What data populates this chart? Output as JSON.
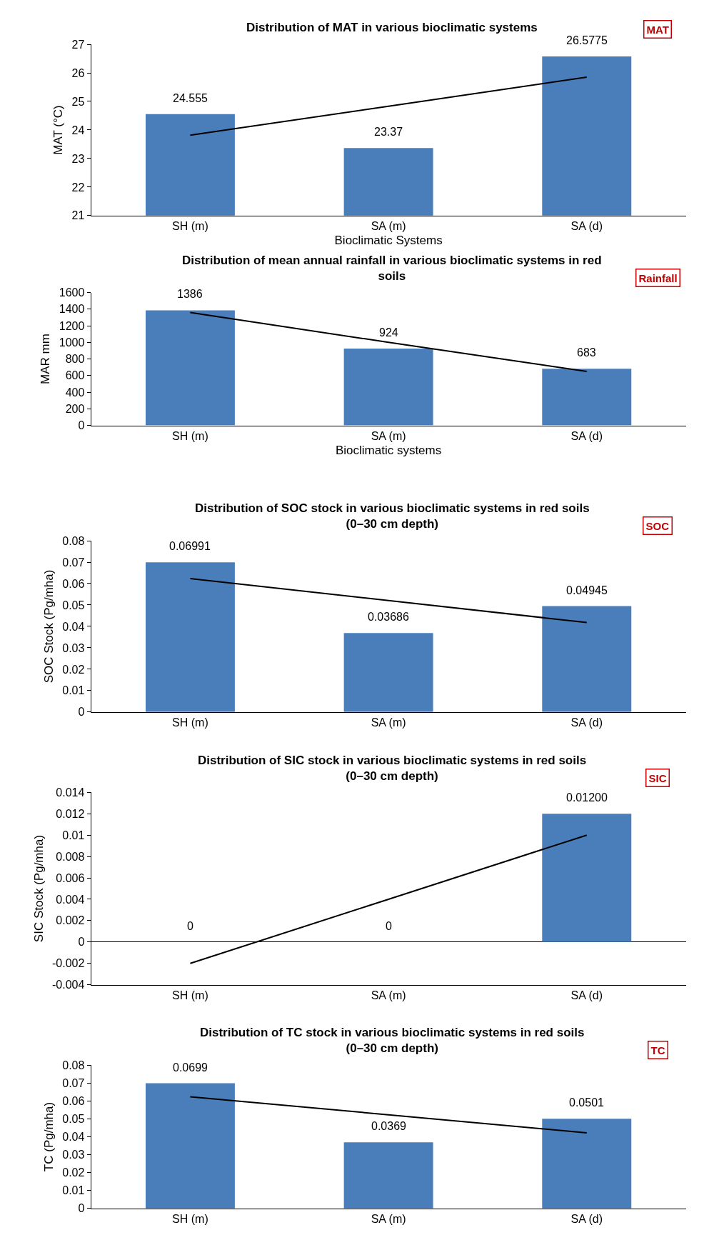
{
  "chart_data": [
    {
      "type": "bar",
      "title": "Distribution of MAT in various bioclimatic systems",
      "xlabel": "Bioclimatic Systems",
      "ylabel": "MAT (°C)",
      "annotations": [
        "MAT"
      ],
      "categories": [
        "SH (m)",
        "SA (m)",
        "SA (d)"
      ],
      "ylim": [
        21,
        27
      ],
      "yticks": [
        21,
        22,
        23,
        24,
        25,
        26,
        27
      ],
      "series": [
        {
          "color": "#4a7ebb",
          "values": [
            24.555,
            23.37,
            26.5775
          ],
          "value_labels": [
            "24.555",
            "23.37",
            "26.5775"
          ]
        },
        {
          "type": "line",
          "color": "#000000",
          "line_style": "solid",
          "values": [
            23.82,
            24.83,
            25.85
          ]
        }
      ]
    },
    {
      "type": "bar",
      "title": "Distribution of mean annual rainfall in various bioclimatic systems in red\nsoils",
      "xlabel": "Bioclimatic systems",
      "ylabel": "MAR mm",
      "annotations": [
        "Rainfall"
      ],
      "categories": [
        "SH (m)",
        "SA (m)",
        "SA (d)"
      ],
      "ylim": [
        0,
        1600
      ],
      "yticks": [
        0,
        200,
        400,
        600,
        800,
        1000,
        1200,
        1400,
        1600
      ],
      "series": [
        {
          "color": "#4a7ebb",
          "values": [
            1386,
            924,
            683
          ],
          "value_labels": [
            "1386",
            "924",
            "683"
          ]
        },
        {
          "type": "line",
          "color": "#000000",
          "line_style": "solid",
          "values": [
            1360,
            1000,
            650
          ]
        }
      ]
    },
    {
      "type": "bar",
      "title": "Distribution of SOC stock in various bioclimatic systems in red soils\n(0–30 cm depth)",
      "ylabel": "SOC Stock (Pg/mha)",
      "annotations": [
        "SOC"
      ],
      "categories": [
        "SH (m)",
        "SA (m)",
        "SA (d)"
      ],
      "ylim": [
        0,
        0.08
      ],
      "yticks": [
        0,
        0.01,
        0.02,
        0.03,
        0.04,
        0.05,
        0.06,
        0.07,
        0.08
      ],
      "series": [
        {
          "color": "#4a7ebb",
          "values": [
            0.06991,
            0.03686,
            0.04945
          ],
          "value_labels": [
            "0.06991",
            "0.03686",
            "0.04945"
          ]
        },
        {
          "type": "line",
          "color": "#000000",
          "line_style": "solid",
          "values": [
            0.0623,
            0.0521,
            0.0418
          ]
        }
      ]
    },
    {
      "type": "bar",
      "title": "Distribution of SIC stock in various bioclimatic systems in red soils\n(0–30 cm depth)",
      "ylabel": "SIC Stock (Pg/mha)",
      "annotations": [
        "SIC"
      ],
      "categories": [
        "SH (m)",
        "SA (m)",
        "SA (d)"
      ],
      "ylim": [
        -0.004,
        0.014
      ],
      "yticks": [
        -0.004,
        -0.002,
        0,
        0.002,
        0.004,
        0.006,
        0.008,
        0.01,
        0.012,
        0.014
      ],
      "series": [
        {
          "color": "#4a7ebb",
          "values": [
            0,
            0,
            0.012
          ],
          "value_labels": [
            "0",
            "0",
            "0.01200"
          ]
        },
        {
          "type": "line",
          "color": "#000000",
          "line_style": "solid",
          "values": [
            -0.002,
            0.004,
            0.01
          ]
        }
      ]
    },
    {
      "type": "bar",
      "title": "Distribution of TC stock in various bioclimatic systems in red soils\n(0–30 cm depth)",
      "ylabel": "TC (Pg/mha)",
      "annotations": [
        "TC"
      ],
      "categories": [
        "SH (m)",
        "SA (m)",
        "SA (d)"
      ],
      "ylim": [
        0,
        0.08
      ],
      "yticks": [
        0,
        0.01,
        0.02,
        0.03,
        0.04,
        0.05,
        0.06,
        0.07,
        0.08
      ],
      "series": [
        {
          "color": "#4a7ebb",
          "values": [
            0.0699,
            0.0369,
            0.0501
          ],
          "value_labels": [
            "0.0699",
            "0.0369",
            "0.0501"
          ]
        },
        {
          "type": "line",
          "color": "#000000",
          "line_style": "solid",
          "values": [
            0.0623,
            0.0523,
            0.0422
          ]
        }
      ]
    }
  ]
}
